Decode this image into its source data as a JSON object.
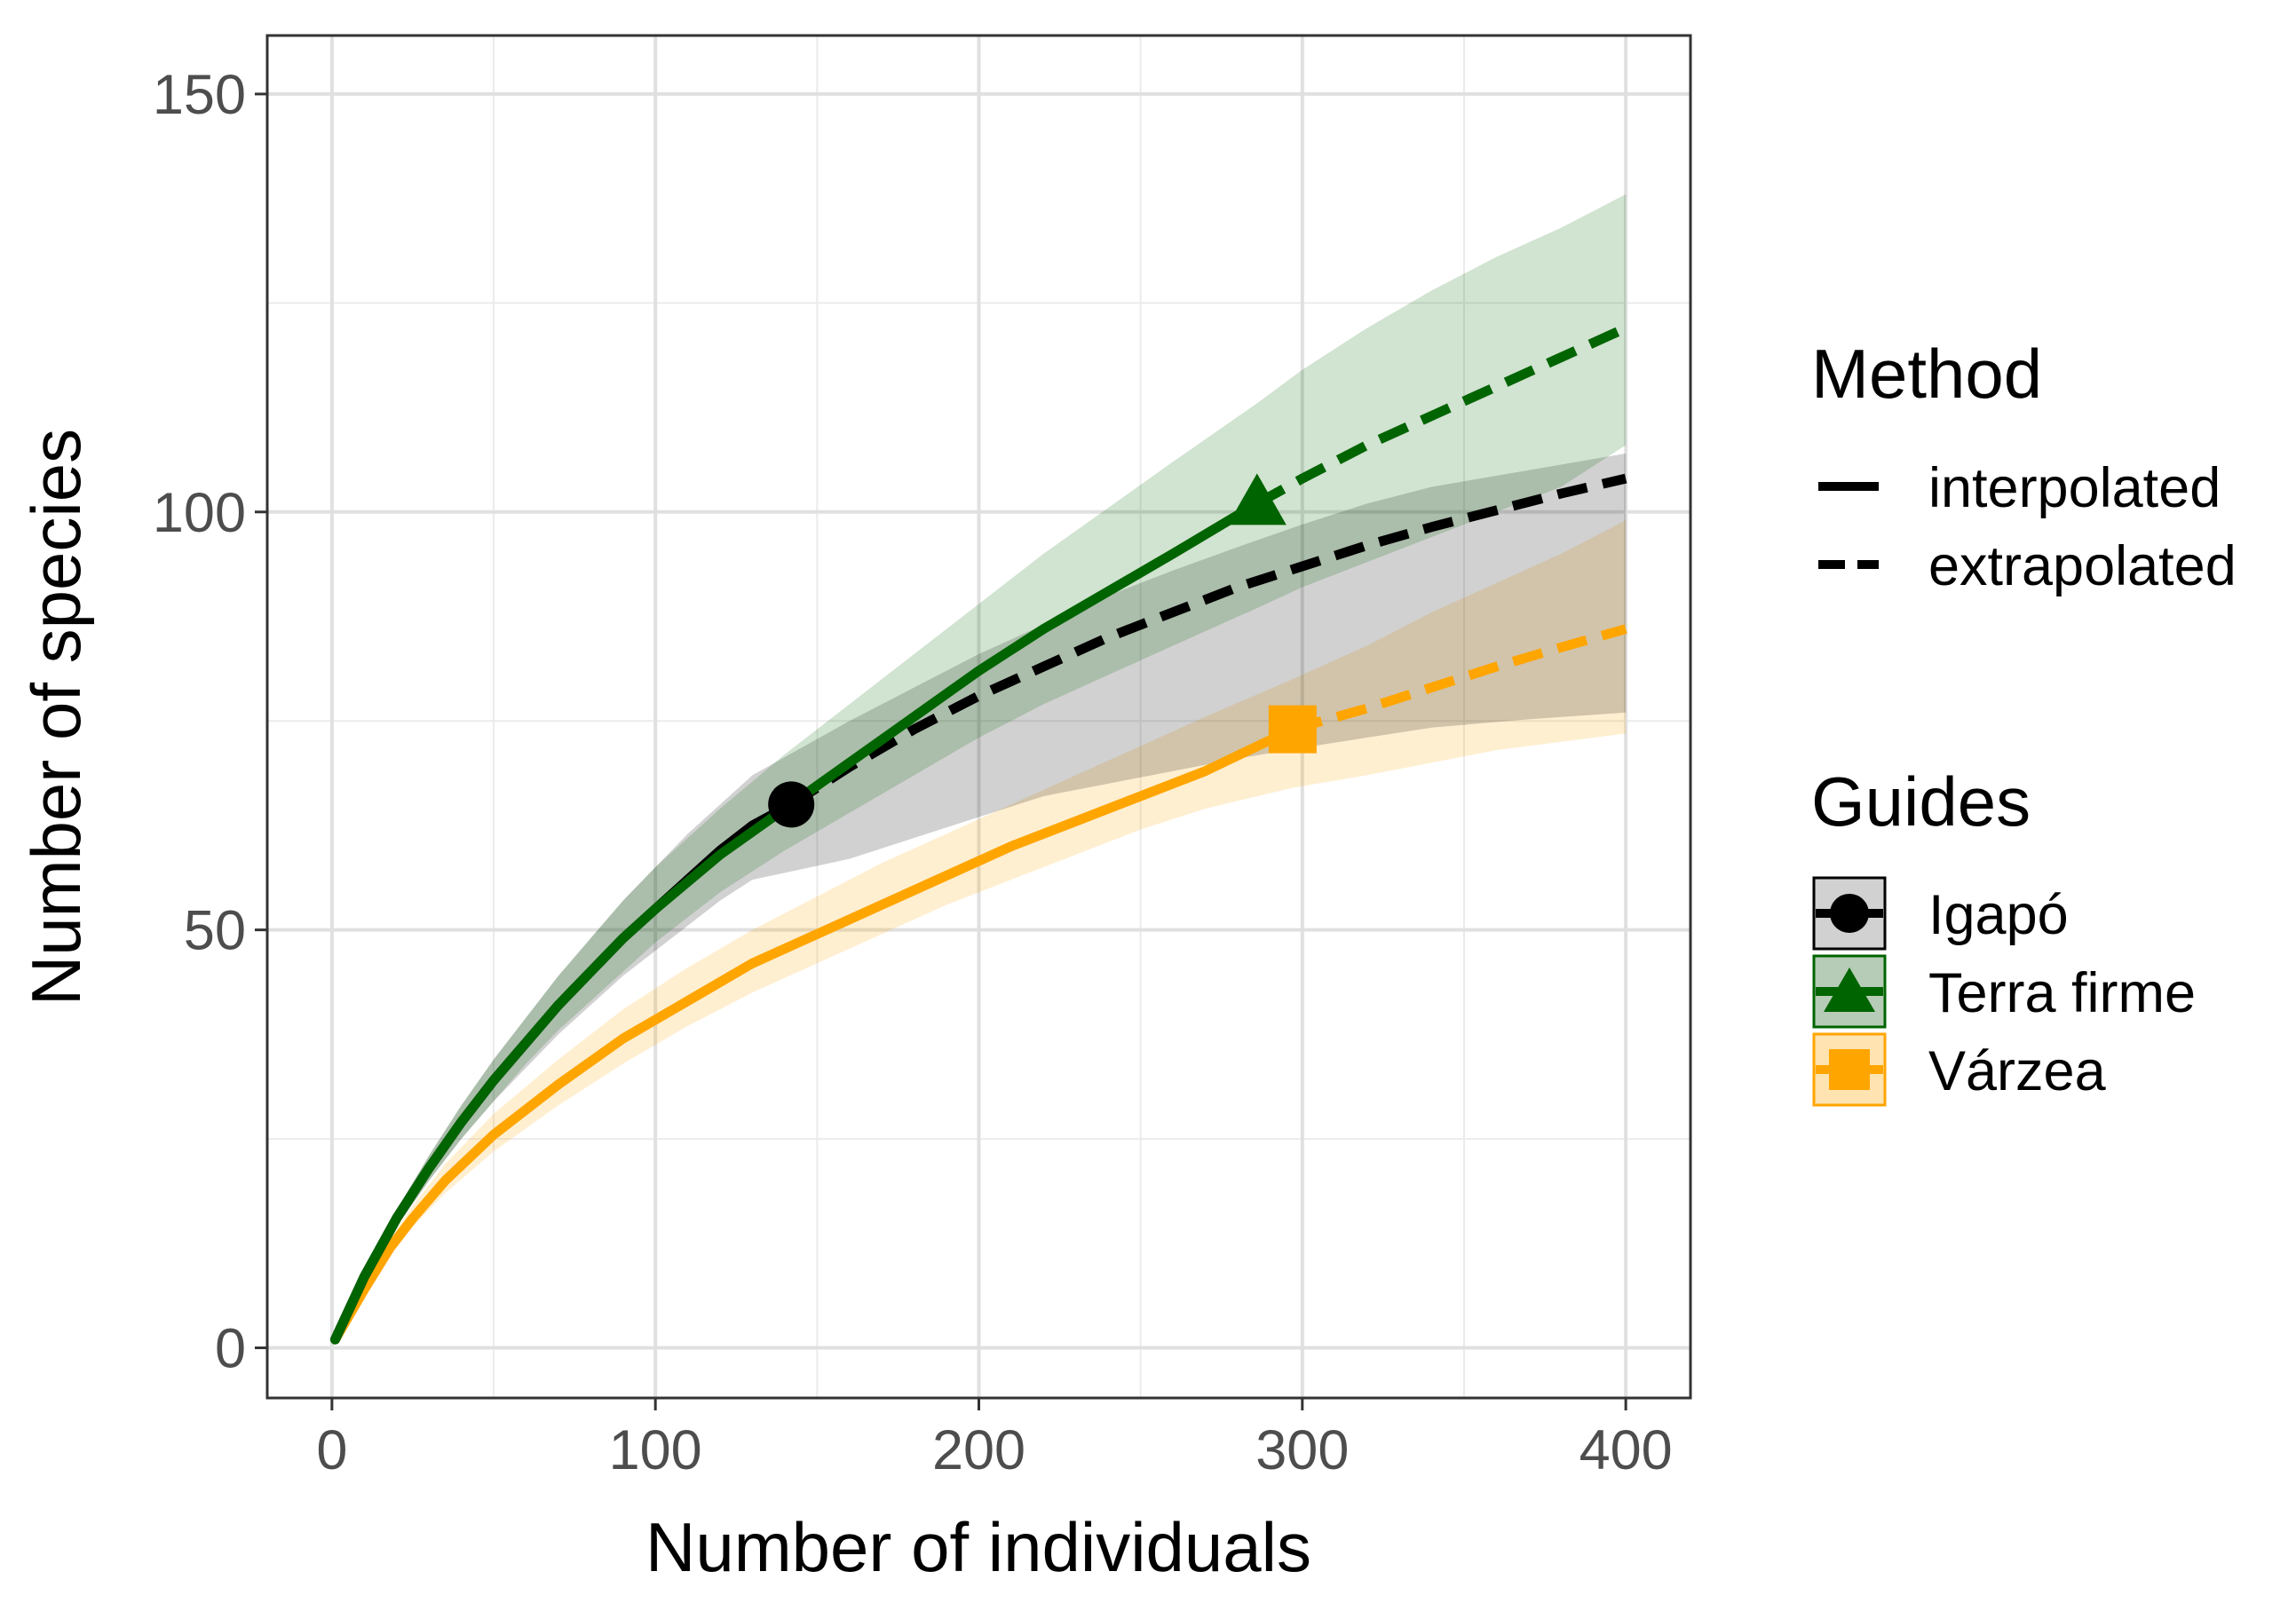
{
  "chart_data": {
    "type": "line",
    "title": "",
    "xlabel": "Number of individuals",
    "ylabel": "Number of species",
    "xlim": [
      -20,
      420
    ],
    "ylim": [
      -6,
      157
    ],
    "xticks": [
      0,
      100,
      200,
      300,
      400
    ],
    "yticks": [
      0,
      50,
      100,
      150
    ],
    "grid": true,
    "legend_position": "right",
    "method_legend": {
      "title": "Method",
      "entries": [
        {
          "label": "interpolated",
          "linestyle": "solid"
        },
        {
          "label": "extrapolated",
          "linestyle": "dashed"
        }
      ]
    },
    "guides_legend": {
      "title": "Guides",
      "entries": [
        "Igapó",
        "Terra firme",
        "Várzea"
      ]
    },
    "series": [
      {
        "name": "Igapó",
        "color": "#000000",
        "fill": "#000000",
        "marker": "circle",
        "observed": {
          "x": 142,
          "y": 65
        },
        "interpolated": {
          "x": [
            1,
            10,
            20,
            30,
            40,
            50,
            60,
            70,
            80,
            90,
            100,
            110,
            120,
            130,
            142
          ],
          "y": [
            1,
            8.5,
            15.5,
            21.5,
            27,
            32,
            36.5,
            41,
            45,
            49,
            52.5,
            56,
            59.5,
            62.5,
            65
          ]
        },
        "extrapolated": {
          "x": [
            142,
            160,
            180,
            200,
            220,
            240,
            260,
            280,
            300,
            320,
            340,
            360,
            380,
            400
          ],
          "y": [
            65,
            69.5,
            74,
            78,
            81.5,
            85,
            88,
            91,
            93.5,
            96,
            98.2,
            100.2,
            102.2,
            104
          ]
        },
        "ci_lower": [
          1,
          8,
          14.5,
          20,
          25,
          29.5,
          33.5,
          37.5,
          41,
          44.5,
          47.5,
          50.5,
          53.5,
          56,
          58.5,
          61,
          63.5,
          66,
          67.5,
          69,
          70.5,
          71.8,
          73,
          74.2,
          75.2,
          76
        ],
        "ci_upper": [
          1,
          9,
          16.5,
          23,
          29,
          34.5,
          39.5,
          44.5,
          49,
          53.5,
          57.5,
          61.5,
          65,
          68.5,
          75,
          79,
          83,
          86.5,
          90,
          93,
          95.8,
          98.5,
          101,
          103,
          105,
          107
        ],
        "ci_x": [
          1,
          10,
          20,
          30,
          40,
          50,
          60,
          70,
          80,
          90,
          100,
          110,
          120,
          130,
          160,
          180,
          200,
          220,
          240,
          260,
          280,
          300,
          320,
          340,
          370,
          400
        ]
      },
      {
        "name": "Terra firme",
        "color": "#006400",
        "fill": "#006400",
        "marker": "triangle",
        "observed": {
          "x": 286,
          "y": 101
        },
        "interpolated": {
          "x": [
            1,
            10,
            20,
            30,
            40,
            50,
            60,
            70,
            80,
            90,
            100,
            120,
            140,
            160,
            180,
            200,
            220,
            240,
            260,
            286
          ],
          "y": [
            1,
            8.5,
            15.5,
            21.5,
            27,
            32,
            36.5,
            41,
            45,
            49,
            52.5,
            59,
            64.5,
            70,
            75.5,
            81,
            86,
            90.5,
            95,
            101
          ]
        },
        "extrapolated": {
          "x": [
            286,
            300,
            320,
            340,
            360,
            380,
            400
          ],
          "y": [
            101,
            104,
            108,
            111.5,
            115,
            118.5,
            122
          ]
        },
        "ci_lower": [
          1,
          8,
          14.5,
          20,
          25,
          29.5,
          34,
          38,
          41.5,
          45,
          48.5,
          54.5,
          59.5,
          64,
          68.5,
          73,
          77,
          80.5,
          84,
          88.5,
          91,
          94,
          97,
          100,
          103,
          105.5,
          108
        ],
        "ci_upper": [
          1,
          9,
          16.5,
          23,
          29,
          34.5,
          39.5,
          44.5,
          49,
          53.5,
          57.5,
          64.5,
          71,
          77,
          83,
          89,
          95,
          100.5,
          106,
          113,
          117,
          122,
          126.5,
          130.5,
          134,
          136,
          138
        ],
        "ci_x": [
          1,
          10,
          20,
          30,
          40,
          50,
          60,
          70,
          80,
          90,
          100,
          120,
          140,
          160,
          180,
          200,
          220,
          240,
          260,
          286,
          300,
          320,
          340,
          360,
          380,
          390,
          400
        ]
      },
      {
        "name": "Várzea",
        "color": "#FFA500",
        "fill": "#FFA500",
        "marker": "square",
        "observed": {
          "x": 297,
          "y": 74
        },
        "interpolated": {
          "x": [
            1,
            10,
            18,
            25,
            35,
            50,
            70,
            90,
            110,
            130,
            150,
            170,
            190,
            210,
            230,
            250,
            270,
            297
          ],
          "y": [
            1,
            7,
            12,
            15.5,
            20,
            25.5,
            31.5,
            37,
            41.5,
            46,
            49.5,
            53,
            56.5,
            60,
            63,
            66,
            69,
            74
          ]
        },
        "extrapolated": {
          "x": [
            297,
            320,
            340,
            360,
            380,
            400
          ],
          "y": [
            74,
            76.5,
            79,
            81.5,
            83.8,
            86
          ]
        },
        "ci_lower": [
          1,
          6.5,
          11,
          14.5,
          18.5,
          23.5,
          29,
          34,
          38.5,
          42.5,
          46,
          49.5,
          53,
          56,
          59,
          62,
          64.5,
          67,
          68.5,
          70,
          71.5,
          72.5,
          73.5
        ],
        "ci_upper": [
          1,
          7.5,
          13,
          17,
          22,
          28,
          34.5,
          40.5,
          45.5,
          50,
          54,
          58,
          61.5,
          65,
          68.5,
          72,
          75.5,
          80,
          84,
          88,
          91.5,
          95,
          99
        ],
        "ci_x": [
          1,
          10,
          18,
          25,
          35,
          50,
          70,
          90,
          110,
          130,
          150,
          170,
          190,
          210,
          230,
          250,
          270,
          297,
          320,
          340,
          360,
          380,
          400
        ]
      }
    ]
  }
}
